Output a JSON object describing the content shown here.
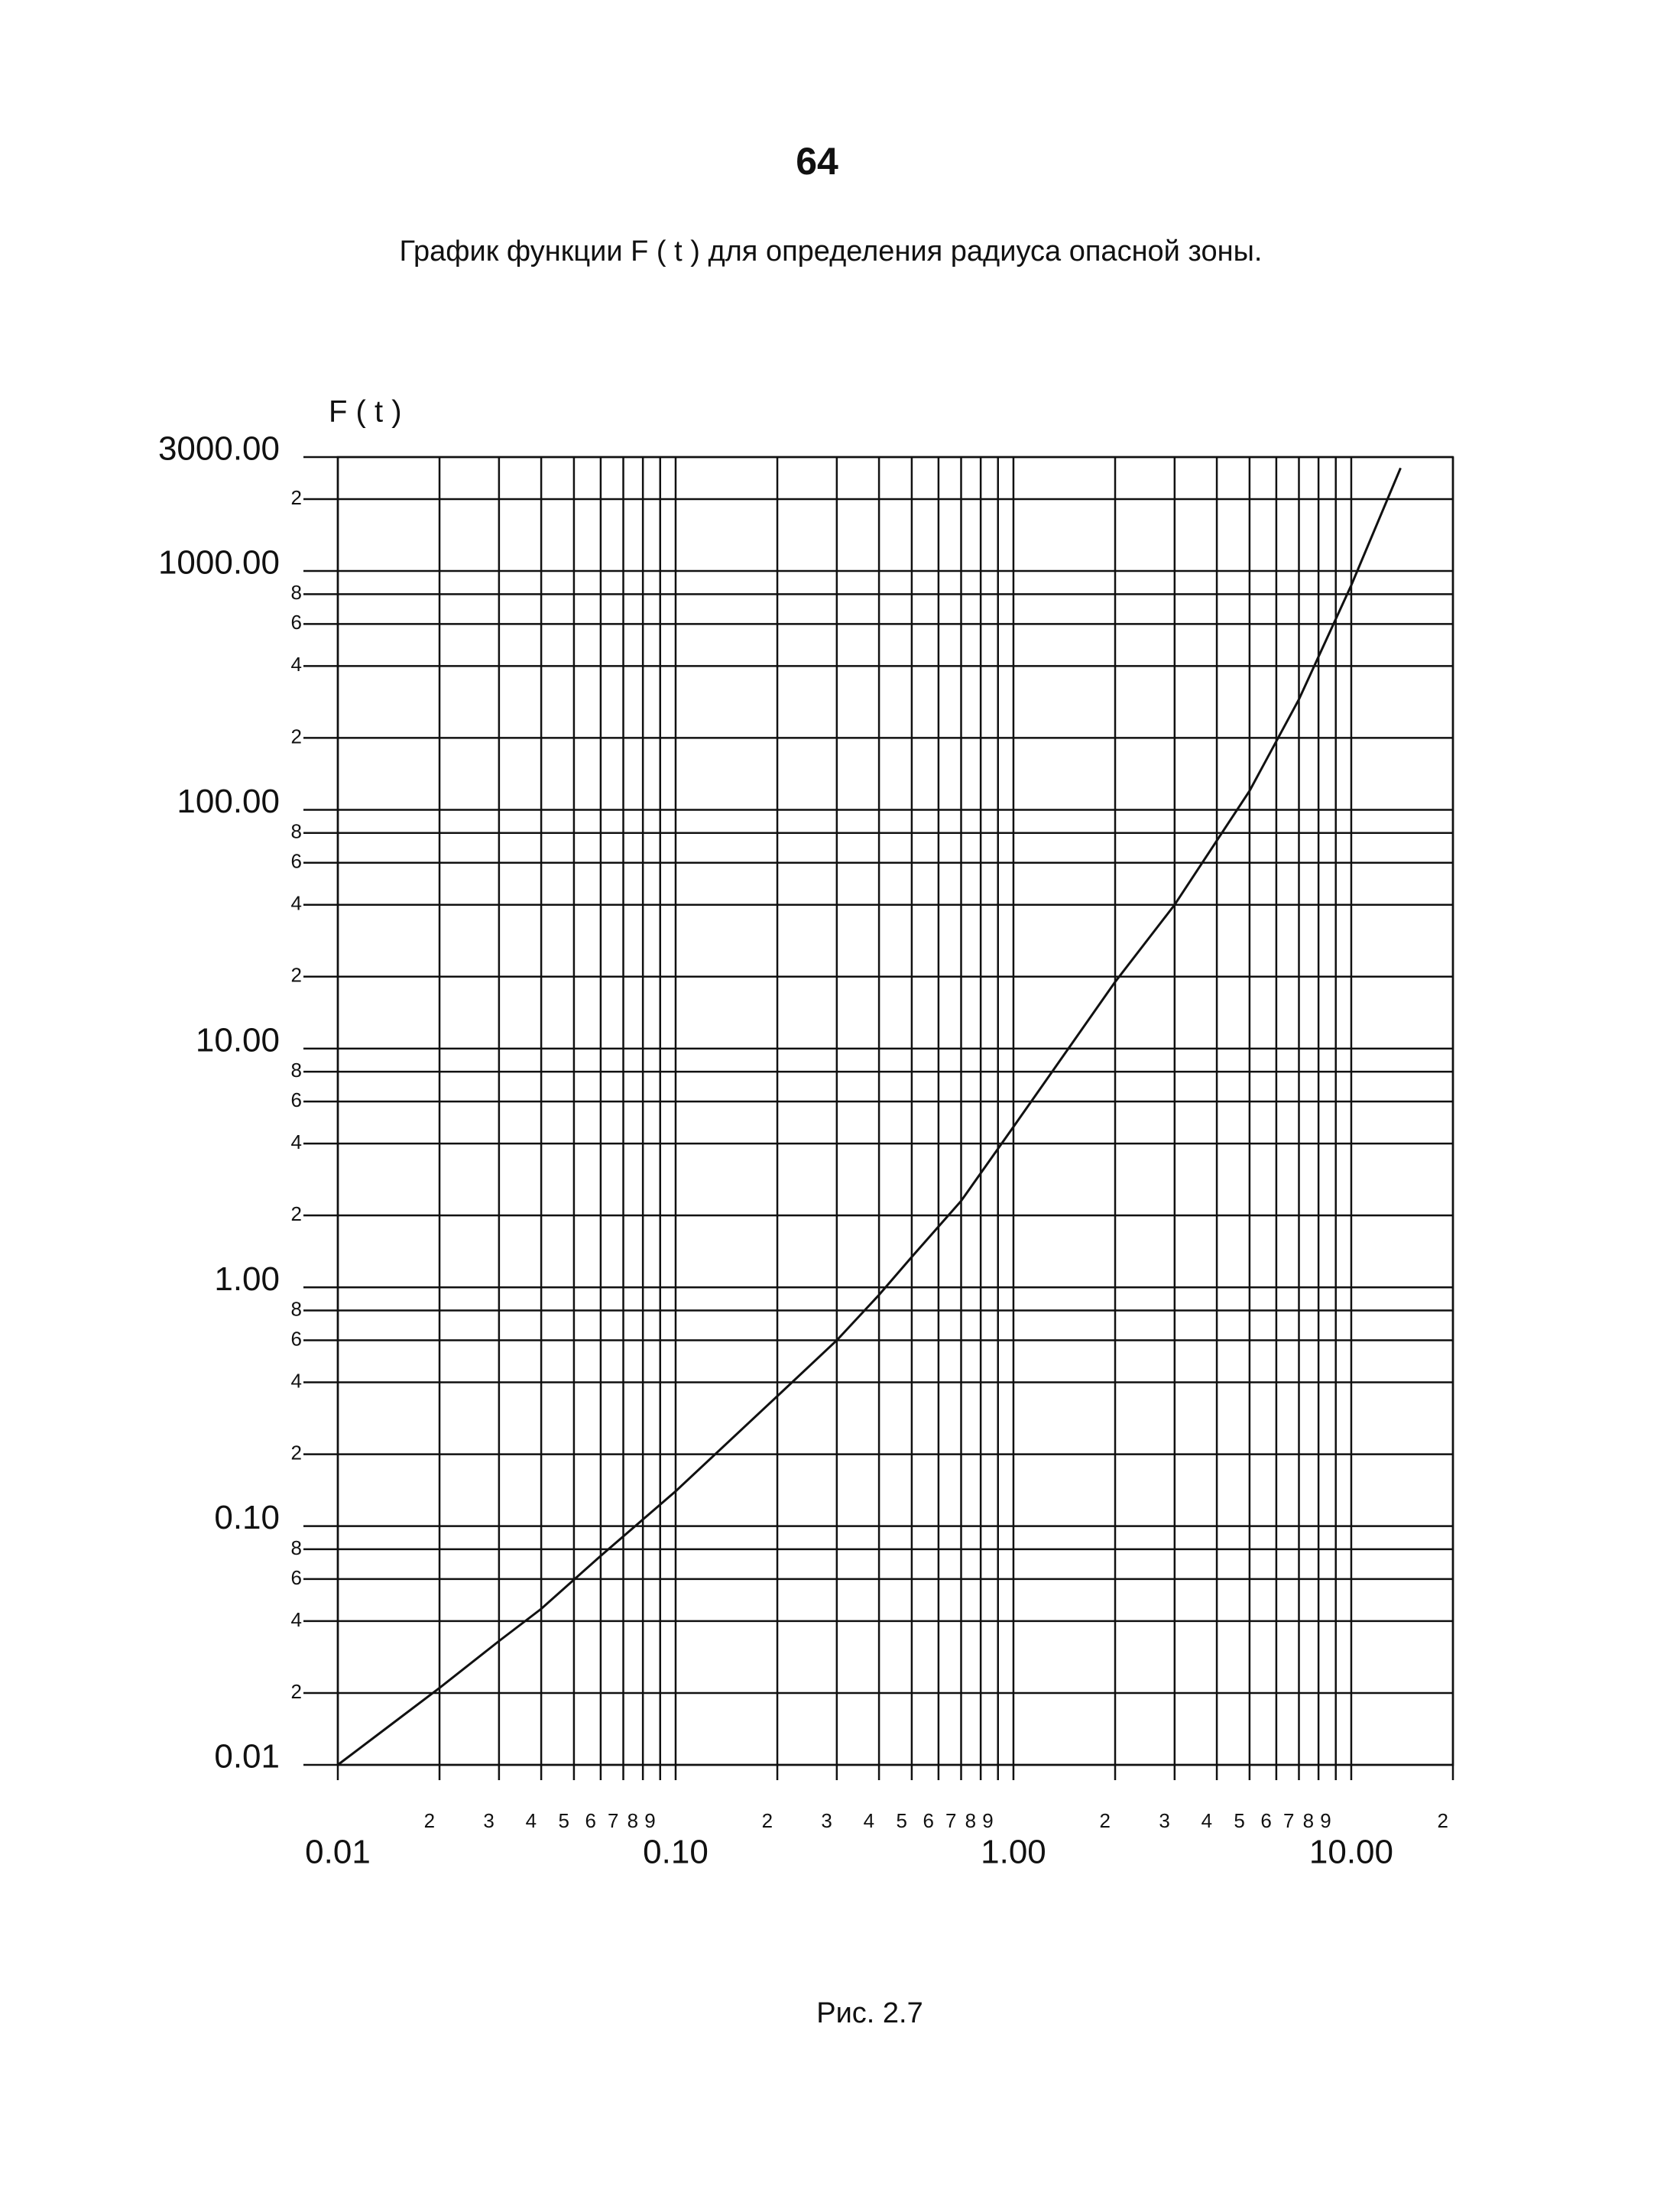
{
  "page_number": "64",
  "caption": "Рис. 2.7",
  "chart_data": {
    "type": "line",
    "title": "График функции  F ( t )  для определения радиуса опасной зоны.",
    "y_label": "F ( t )",
    "xscale": "log",
    "yscale": "log",
    "grid": true,
    "x": [
      0.01,
      0.02,
      0.03,
      0.04,
      0.06,
      0.1,
      0.2,
      0.3,
      0.4,
      0.5,
      0.7,
      1,
      2,
      3,
      5,
      7,
      10,
      14
    ],
    "series": [
      {
        "color": "#111111",
        "values": [
          0.01,
          0.021,
          0.033,
          0.045,
          0.075,
          0.14,
          0.35,
          0.6,
          0.93,
          1.34,
          2.3,
          4.7,
          19,
          40,
          120,
          290,
          870,
          2700
        ]
      }
    ],
    "xlim": [
      0.01,
      20
    ],
    "ylim": [
      0.01,
      3000
    ],
    "xticks": [
      0.01,
      {
        "value": 0.02,
        "label": "2"
      },
      {
        "value": 0.03,
        "label": "3"
      },
      {
        "value": 0.04,
        "label": "4"
      },
      {
        "value": 0.05,
        "label": "5"
      },
      {
        "value": 0.06,
        "label": "6"
      },
      {
        "value": 0.07,
        "label": "7"
      },
      {
        "value": 0.08,
        "label": "8"
      },
      {
        "value": 0.09,
        "label": "9"
      },
      {
        "value": 0.1,
        "label": "0.10"
      },
      {
        "value": 0.2,
        "label": "2"
      },
      {
        "value": 0.3,
        "label": "3"
      },
      {
        "value": 0.4,
        "label": "4"
      },
      {
        "value": 0.5,
        "label": "5"
      },
      {
        "value": 0.6,
        "label": "6"
      },
      {
        "value": 0.7,
        "label": "7"
      },
      {
        "value": 0.8,
        "label": "8"
      },
      {
        "value": 0.9,
        "label": "9"
      },
      {
        "value": 1,
        "label": "1.00"
      },
      2,
      3,
      4,
      5,
      6,
      7,
      8,
      9,
      {
        "value": 10,
        "label": "10.00"
      },
      {
        "value": 20,
        "label": "2"
      }
    ],
    "yticks": [
      0.01,
      {
        "value": 0.02,
        "label": "2"
      },
      {
        "value": 0.04,
        "label": "4"
      },
      {
        "value": 0.06,
        "label": "6"
      },
      {
        "value": 0.08,
        "label": "8"
      },
      {
        "value": 0.1,
        "label": "0.10"
      },
      {
        "value": 0.2,
        "label": "2"
      },
      {
        "value": 0.4,
        "label": "4"
      },
      {
        "value": 0.6,
        "label": "6"
      },
      {
        "value": 0.8,
        "label": "8"
      },
      {
        "value": 1,
        "label": "1.00"
      },
      2,
      4,
      6,
      8,
      {
        "value": 10,
        "label": "10.00"
      },
      {
        "value": 20,
        "label": "2"
      },
      {
        "value": 40,
        "label": "4"
      },
      {
        "value": 60,
        "label": "6"
      },
      {
        "value": 80,
        "label": "8"
      },
      {
        "value": 100,
        "label": "100.00"
      },
      {
        "value": 200,
        "label": "2"
      },
      {
        "value": 400,
        "label": "4"
      },
      {
        "value": 600,
        "label": "6"
      },
      {
        "value": 800,
        "label": "8"
      },
      {
        "value": 1000,
        "label": "1000.00"
      },
      {
        "value": 2000,
        "label": "2"
      },
      {
        "value": 3000,
        "label": "3000.00"
      }
    ]
  }
}
